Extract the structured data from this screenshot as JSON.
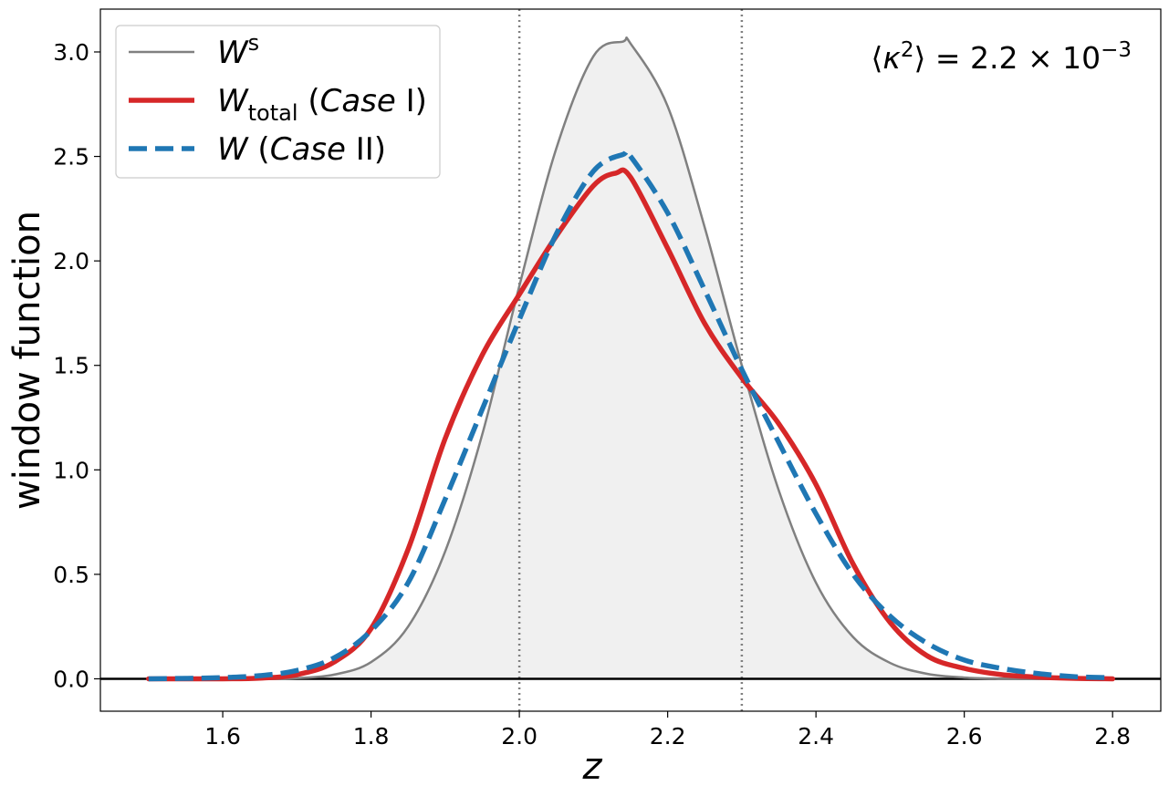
{
  "chart_data": {
    "type": "line",
    "xlabel": "z",
    "ylabel": "window function",
    "xlim": [
      1.435,
      2.865
    ],
    "ylim": [
      -0.155,
      3.205
    ],
    "xticks": [
      1.6,
      1.8,
      2.0,
      2.2,
      2.4,
      2.6,
      2.8
    ],
    "xtick_labels": [
      "1.6",
      "1.8",
      "2.0",
      "2.2",
      "2.4",
      "2.6",
      "2.8"
    ],
    "yticks": [
      0.0,
      0.5,
      1.0,
      1.5,
      2.0,
      2.5,
      3.0
    ],
    "ytick_labels": [
      "0.0",
      "0.5",
      "1.0",
      "1.5",
      "2.0",
      "2.5",
      "3.0"
    ],
    "vlines": [
      2.0,
      2.3
    ],
    "hline": 0.0,
    "legend_position": "top-left",
    "annotation": {
      "text_prefix": "⟨κ",
      "sup1": "2",
      "text_mid": "⟩ = 2.2 × 10",
      "sup2": "−3"
    },
    "series": [
      {
        "name": "W^s",
        "legend": {
          "main": "W",
          "sup": "s",
          "sub": "",
          "rest": ""
        },
        "color": "#808080",
        "style": "solid",
        "filled": true,
        "fill_color": "#f0f0f0",
        "x": [
          1.5,
          1.55,
          1.6,
          1.65,
          1.7,
          1.75,
          1.8,
          1.85,
          1.9,
          1.95,
          2.0,
          2.05,
          2.1,
          2.14,
          2.15,
          2.2,
          2.25,
          2.3,
          2.35,
          2.4,
          2.45,
          2.5,
          2.55,
          2.6,
          2.65,
          2.7,
          2.75,
          2.8
        ],
        "values": [
          0.0,
          0.0,
          0.0,
          0.0,
          0.003,
          0.02,
          0.08,
          0.25,
          0.61,
          1.17,
          1.88,
          2.54,
          2.98,
          3.05,
          3.04,
          2.74,
          2.16,
          1.5,
          0.9,
          0.46,
          0.2,
          0.076,
          0.024,
          0.006,
          0.001,
          0.0,
          0.0,
          0.0
        ]
      },
      {
        "name": "W_total (Case I)",
        "legend": {
          "main": "W",
          "sup": "",
          "sub": "total",
          "rest": " (Case I)"
        },
        "color": "#d62728",
        "style": "solid",
        "filled": false,
        "x": [
          1.5,
          1.55,
          1.6,
          1.65,
          1.7,
          1.75,
          1.8,
          1.85,
          1.9,
          1.95,
          2.0,
          2.05,
          2.1,
          2.13,
          2.15,
          2.2,
          2.25,
          2.3,
          2.35,
          2.4,
          2.45,
          2.5,
          2.55,
          2.6,
          2.65,
          2.7,
          2.75,
          2.8
        ],
        "values": [
          0.0,
          0.0,
          0.0,
          0.003,
          0.02,
          0.08,
          0.24,
          0.62,
          1.15,
          1.55,
          1.84,
          2.12,
          2.36,
          2.42,
          2.4,
          2.06,
          1.7,
          1.44,
          1.22,
          0.93,
          0.55,
          0.27,
          0.11,
          0.05,
          0.02,
          0.008,
          0.002,
          0.0
        ]
      },
      {
        "name": "W (Case II)",
        "legend": {
          "main": "W",
          "sup": "",
          "sub": "",
          "rest": " (Case II)"
        },
        "color": "#1f77b4",
        "style": "dashed",
        "filled": false,
        "x": [
          1.5,
          1.55,
          1.6,
          1.65,
          1.7,
          1.75,
          1.8,
          1.85,
          1.9,
          1.95,
          2.0,
          2.05,
          2.1,
          2.14,
          2.15,
          2.2,
          2.25,
          2.3,
          2.35,
          2.4,
          2.45,
          2.5,
          2.55,
          2.6,
          2.65,
          2.7,
          2.75,
          2.8
        ],
        "values": [
          0.0,
          0.002,
          0.006,
          0.015,
          0.04,
          0.1,
          0.23,
          0.46,
          0.86,
          1.29,
          1.72,
          2.13,
          2.43,
          2.51,
          2.5,
          2.23,
          1.86,
          1.48,
          1.13,
          0.79,
          0.5,
          0.3,
          0.17,
          0.09,
          0.05,
          0.025,
          0.01,
          0.005
        ]
      }
    ]
  }
}
